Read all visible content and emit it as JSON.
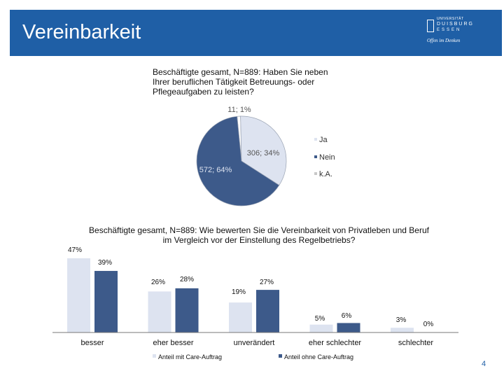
{
  "slide": {
    "title": "Vereinbarkeit",
    "page_number": "4",
    "logo": {
      "line1": "UNIVERSITÄT",
      "line2": "DUISBURG",
      "line3": "ESSEN",
      "slogan": "Offen im Denken"
    }
  },
  "chart_data": [
    {
      "type": "pie",
      "title": "Beschäftigte gesamt, N=889: Haben Sie neben Ihrer beruflichen Tätigkeit Betreuungs- oder Pflegeaufgaben zu leisten?",
      "slices": [
        {
          "label": "Ja",
          "count": 306,
          "percent": 34,
          "data_label": "306; 34%",
          "color": "#dde3f0"
        },
        {
          "label": "Nein",
          "count": 572,
          "percent": 64,
          "data_label": "572; 64%",
          "color": "#3d5a8a"
        },
        {
          "label": "k.A.",
          "count": 11,
          "percent": 1,
          "data_label": "11; 1%",
          "color": "#ffffff"
        }
      ],
      "legend": [
        "Ja",
        "Nein",
        "k.A."
      ],
      "legend_position": "right"
    },
    {
      "type": "bar",
      "title": "Beschäftigte gesamt, N=889: Wie bewerten Sie die Vereinbarkeit von Privatleben und Beruf im Vergleich vor der Einstellung des Regelbetriebs?",
      "categories": [
        "besser",
        "eher besser",
        "unverändert",
        "eher schlechter",
        "schlechter"
      ],
      "series": [
        {
          "name": "Anteil mit Care-Auftrag",
          "values": [
            47,
            26,
            19,
            5,
            3
          ],
          "labels": [
            "47%",
            "26%",
            "19%",
            "5%",
            "3%"
          ],
          "color": "#dde3f0"
        },
        {
          "name": "Anteil ohne Care-Auftrag",
          "values": [
            39,
            28,
            27,
            6,
            0
          ],
          "labels": [
            "39%",
            "28%",
            "27%",
            "6%",
            "0%"
          ],
          "color": "#3d5a8a"
        }
      ],
      "ylim": [
        0,
        50
      ],
      "legend_position": "bottom"
    }
  ]
}
